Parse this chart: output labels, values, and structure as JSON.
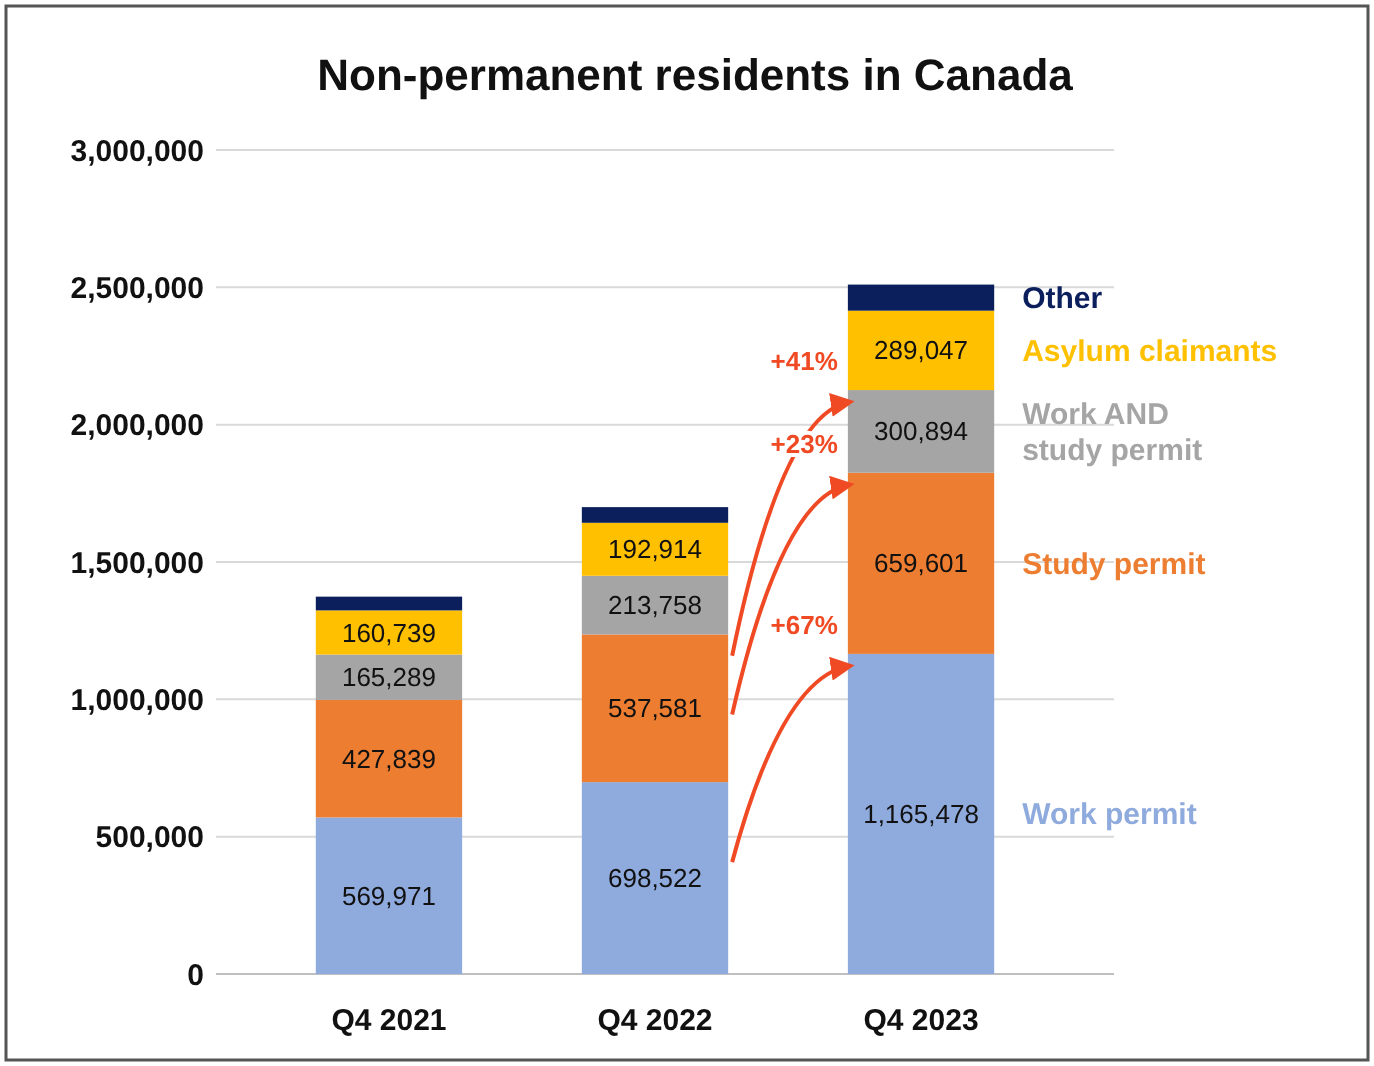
{
  "chart_data": {
    "type": "bar",
    "stacked": true,
    "title": "Non-permanent residents in Canada",
    "categories": [
      "Q4 2021",
      "Q4 2022",
      "Q4 2023"
    ],
    "series": [
      {
        "name": "Work permit",
        "color": "#8faadc",
        "values": [
          569971,
          698522,
          1165478
        ],
        "value_labels": [
          "569,971",
          "698,522",
          "1,165,478"
        ]
      },
      {
        "name": "Study permit",
        "color": "#ed7d31",
        "values": [
          427839,
          537581,
          659601
        ],
        "value_labels": [
          "427,839",
          "537,581",
          "659,601"
        ]
      },
      {
        "name": "Work AND study permit",
        "color": "#a5a5a5",
        "values": [
          165289,
          213758,
          300894
        ],
        "value_labels": [
          "165,289",
          "213,758",
          "300,894"
        ]
      },
      {
        "name": "Asylum claimants",
        "color": "#ffc000",
        "values": [
          160739,
          192914,
          289047
        ],
        "value_labels": [
          "160,739",
          "192,914",
          "289,047"
        ]
      },
      {
        "name": "Other",
        "color": "#0b1f5c",
        "values": [
          50000,
          57000,
          95000
        ],
        "value_labels": [
          null,
          null,
          null
        ]
      }
    ],
    "ylim": [
      0,
      3000000
    ],
    "yticks": [
      {
        "value": 0,
        "label": "0"
      },
      {
        "value": 500000,
        "label": "500,000"
      },
      {
        "value": 1000000,
        "label": "1,000,000"
      },
      {
        "value": 1500000,
        "label": "1,500,000"
      },
      {
        "value": 2000000,
        "label": "2,000,000"
      },
      {
        "value": 2500000,
        "label": "2,500,000"
      },
      {
        "value": 3000000,
        "label": "3,000,000"
      }
    ],
    "grid": "y",
    "annotations": [
      "+41%",
      "+23%",
      "+67%"
    ]
  }
}
